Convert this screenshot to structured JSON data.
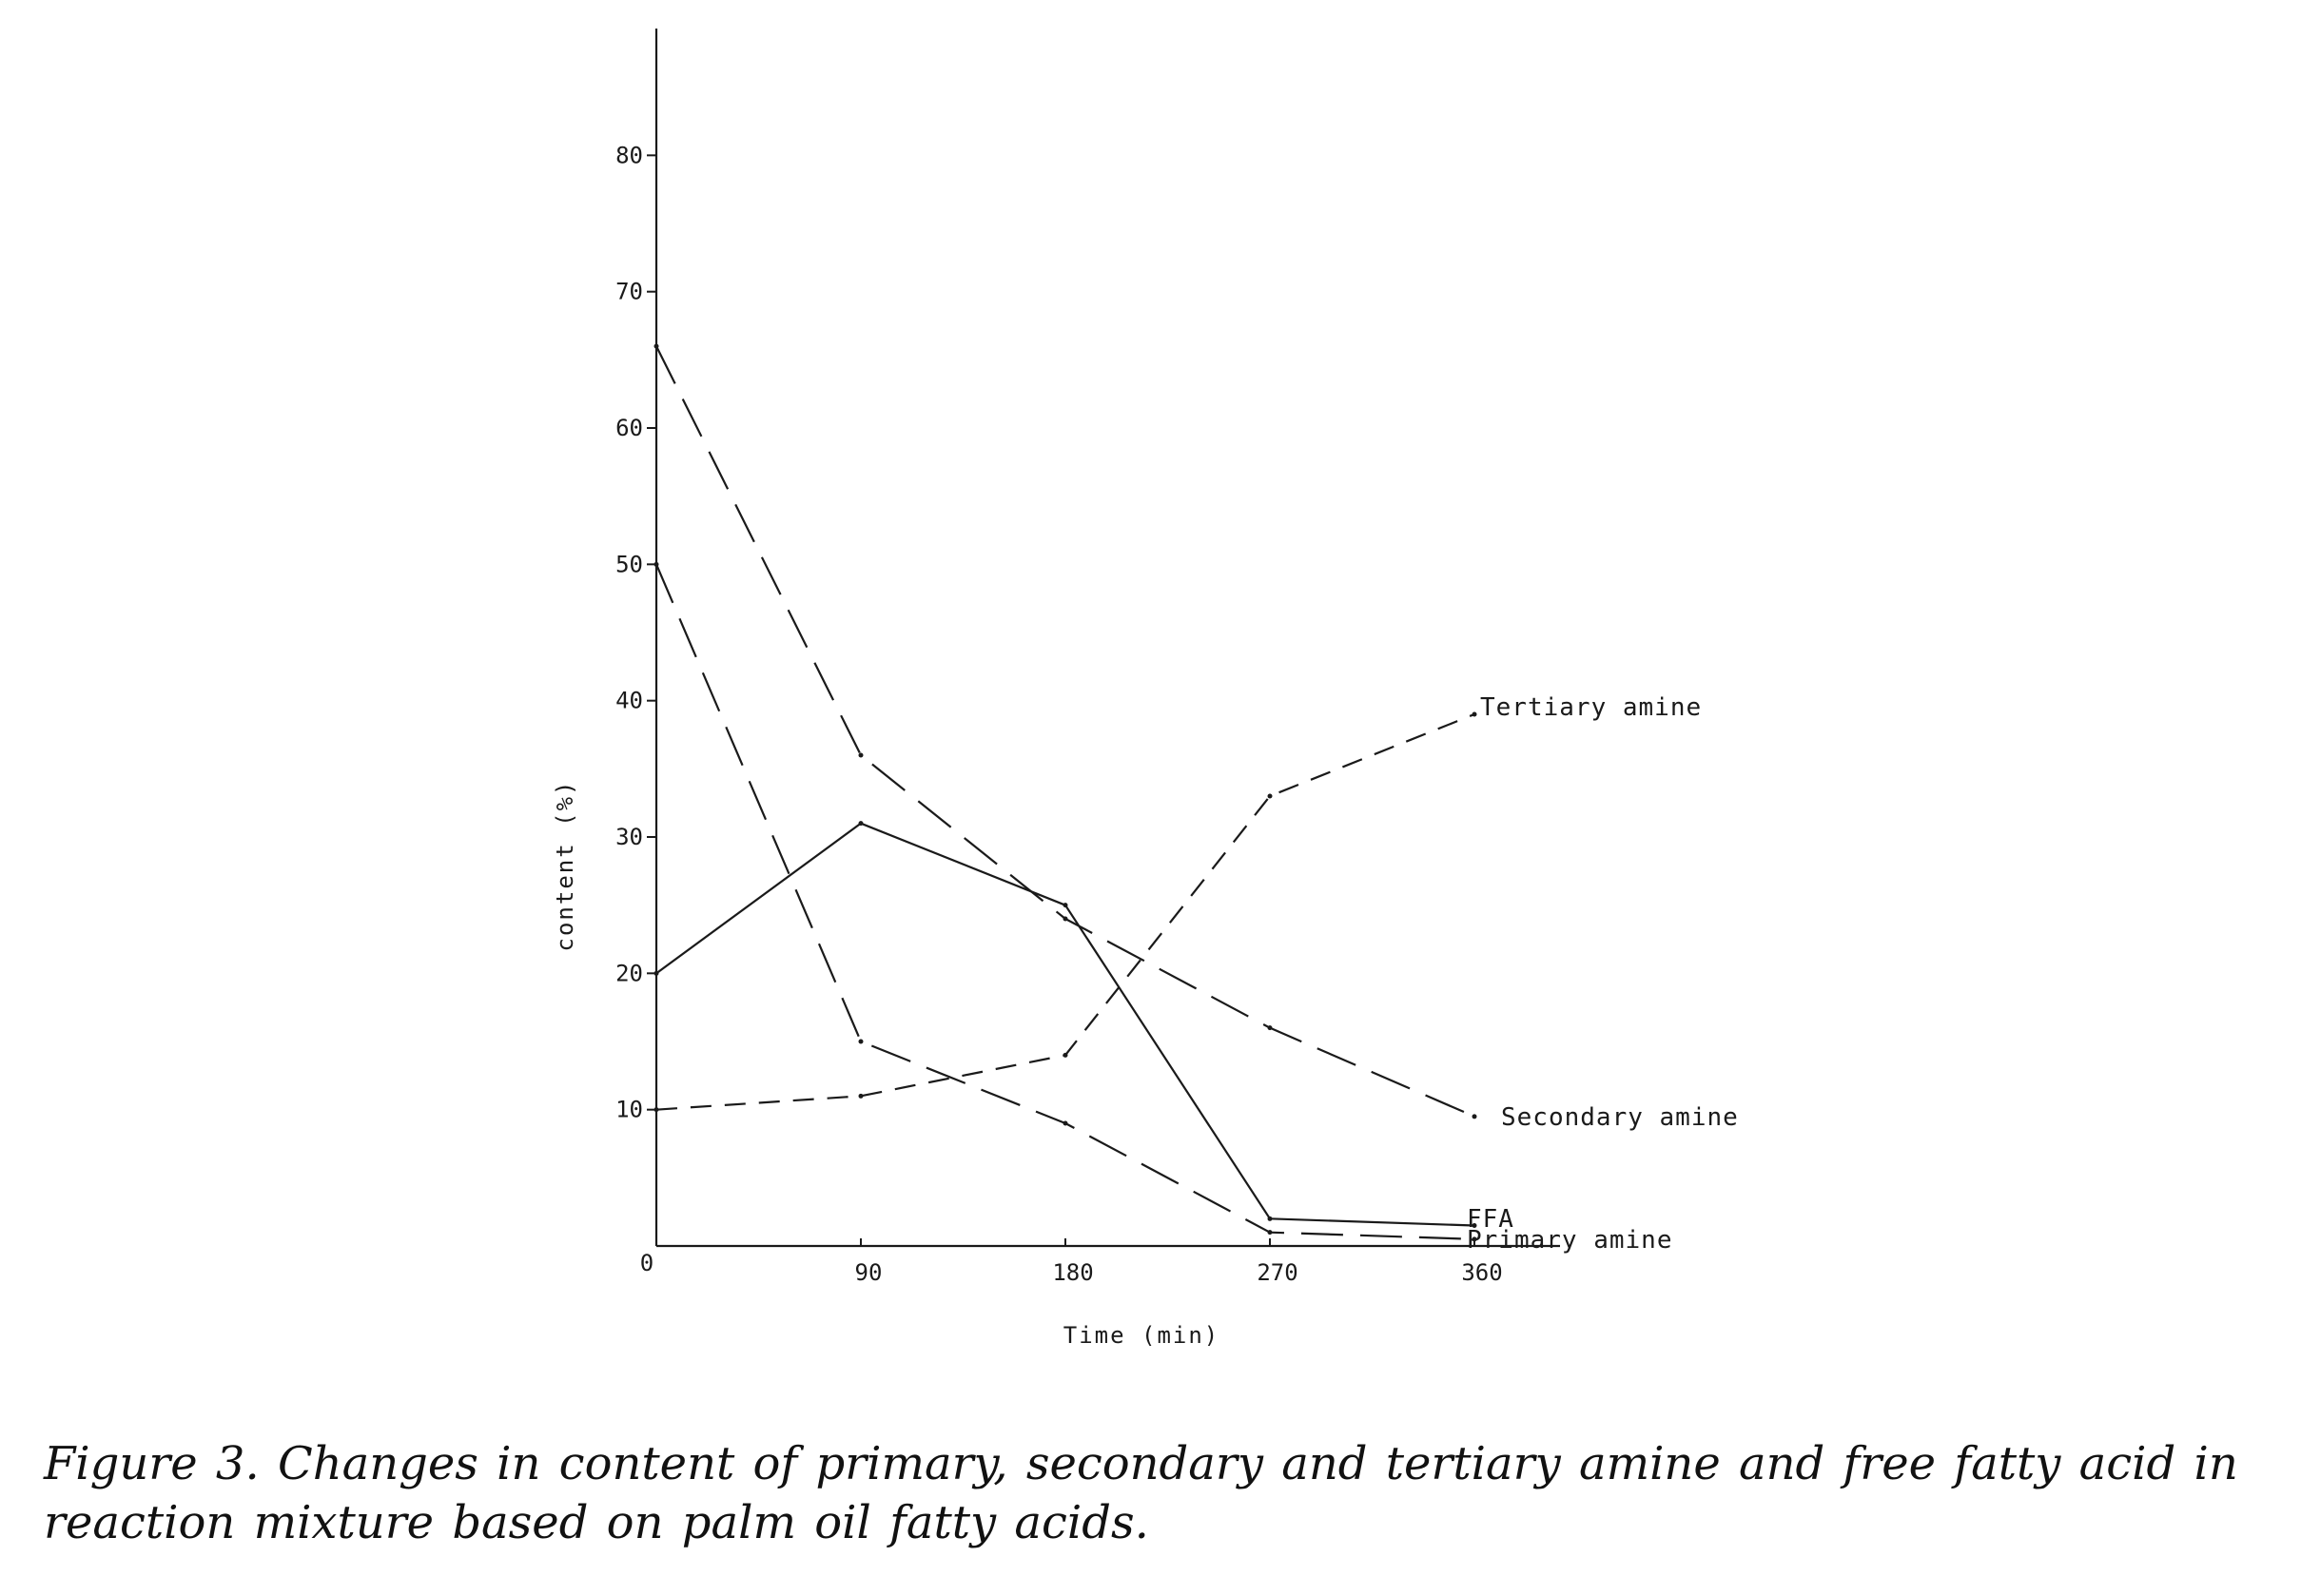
{
  "caption": "Figure 3. Changes in content of primary, secondary and tertiary amine and free fatty acid in reaction mixture based on palm oil fatty acids.",
  "chart_data": {
    "type": "line",
    "title": "",
    "xlabel": "Time (min)",
    "ylabel": "content (%)",
    "x": [
      0,
      90,
      180,
      270,
      360
    ],
    "x_ticks": [
      "0",
      "90",
      "180",
      "270",
      "360"
    ],
    "y_ticks": [
      "10",
      "20",
      "30",
      "40",
      "50",
      "60",
      "70",
      "80"
    ],
    "y_tick_values": [
      10,
      20,
      30,
      40,
      50,
      60,
      70,
      80
    ],
    "xlim": [
      0,
      360
    ],
    "ylim": [
      0,
      90
    ],
    "grid": false,
    "legend": "none (series labelled at line ends)",
    "series": [
      {
        "name": "Tertiary amine",
        "style": "short-dash",
        "values": [
          10,
          11,
          14,
          33,
          39
        ]
      },
      {
        "name": "Secondary amine",
        "style": "long-dash",
        "values": [
          66,
          36,
          24,
          16,
          9.5
        ]
      },
      {
        "name": "FFA",
        "style": "solid",
        "values": [
          20,
          31,
          25,
          2,
          1.5
        ]
      },
      {
        "name": "Primary amine",
        "style": "long-dash",
        "values": [
          50,
          15,
          9,
          1,
          0.5
        ]
      }
    ]
  }
}
